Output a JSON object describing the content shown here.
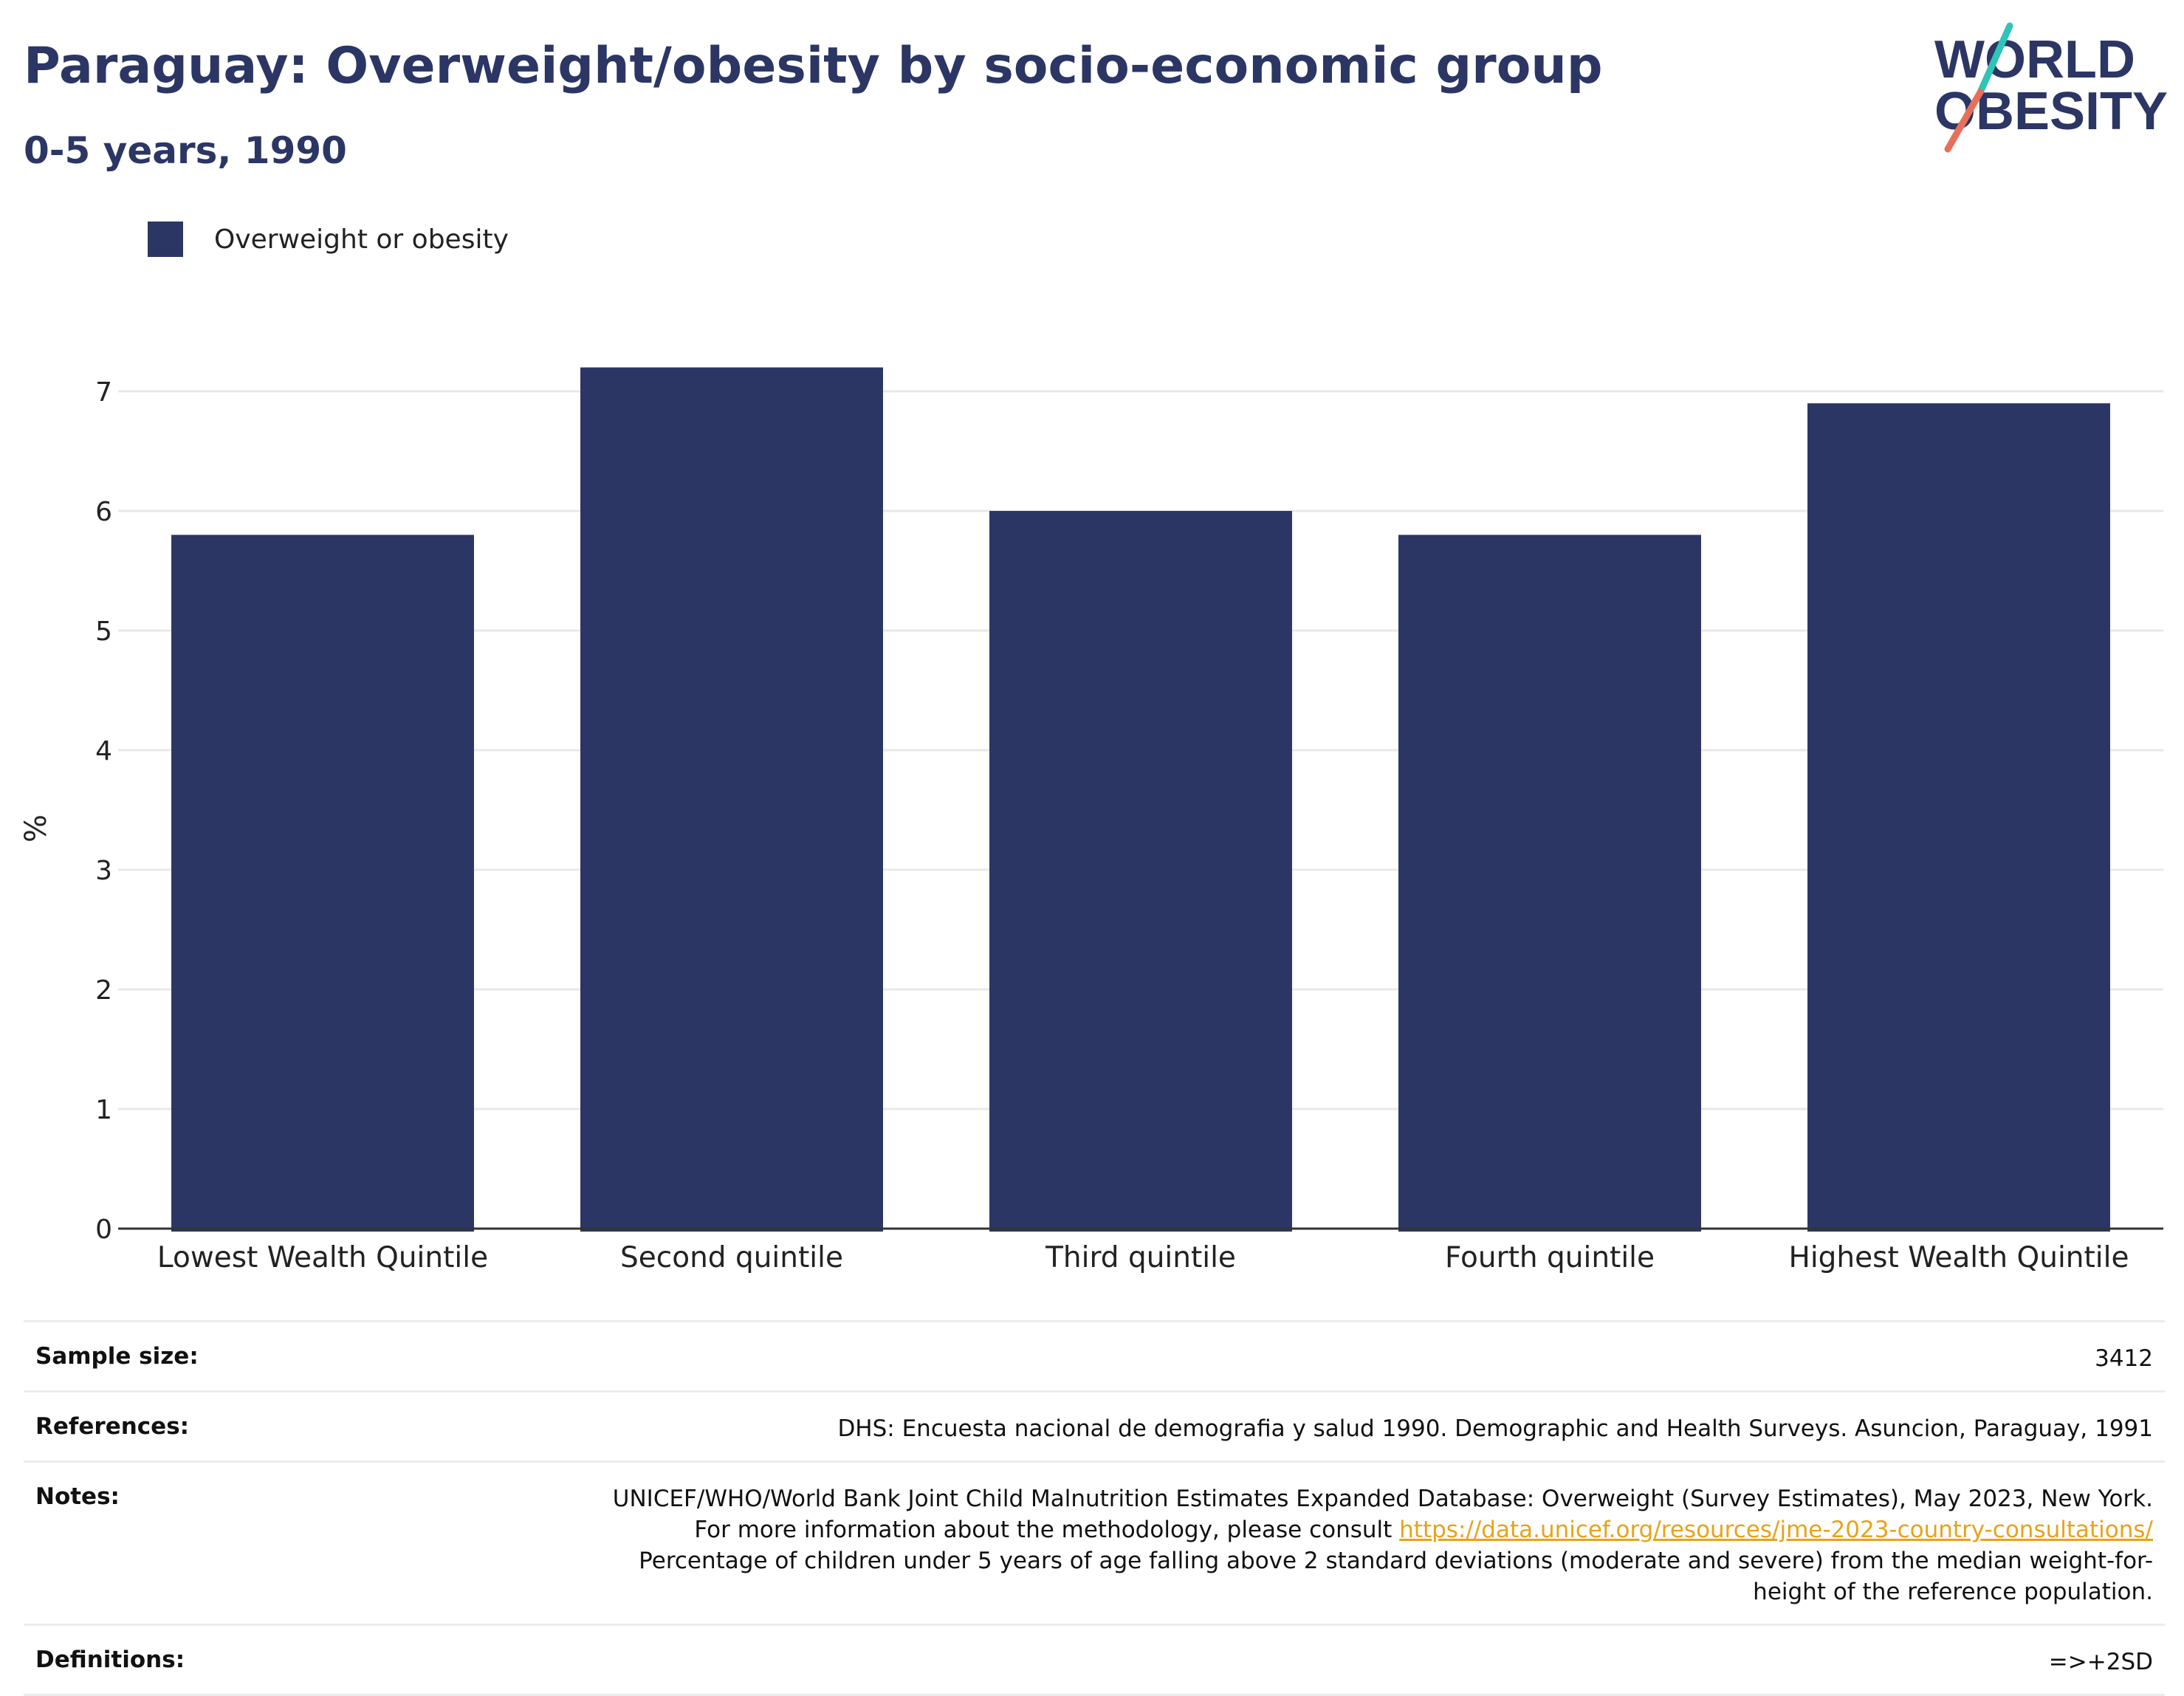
{
  "header": {
    "title": "Paraguay: Overweight/obesity by socio-economic group",
    "subtitle": "0-5 years, 1990"
  },
  "logo": {
    "line1": "WORLD",
    "line2": "OBESITY",
    "colors": {
      "text": "#2b3664",
      "slash_top": "#2ec4b6",
      "slash_bottom": "#e8705a"
    }
  },
  "legend": {
    "label": "Overweight or obesity"
  },
  "colors": {
    "bar": "#2b3664",
    "grid": "#e8e8e8",
    "axis": "#333333",
    "link": "#e8a317"
  },
  "chart_data": {
    "type": "bar",
    "categories": [
      "Lowest Wealth Quintile",
      "Second quintile",
      "Third quintile",
      "Fourth quintile",
      "Highest Wealth Quintile"
    ],
    "series": [
      {
        "name": "Overweight or obesity",
        "values": [
          5.8,
          7.2,
          6.0,
          5.8,
          6.9
        ]
      }
    ],
    "ylabel": "%",
    "ylim": [
      0,
      7.5
    ],
    "yticks": [
      0,
      1,
      2,
      3,
      4,
      5,
      6,
      7
    ],
    "grid": true,
    "legend_position": "top-left"
  },
  "info": {
    "sample_size": {
      "label": "Sample size:",
      "value": "3412"
    },
    "references": {
      "label": "References:",
      "value": "DHS: Encuesta nacional de demografia y salud 1990. Demographic and Health Surveys. Asuncion, Paraguay, 1991"
    },
    "notes": {
      "label": "Notes:",
      "text_before": "UNICEF/WHO/World Bank Joint Child Malnutrition Estimates Expanded Database: Overweight (Survey Estimates), May 2023, New York. For more information about the methodology, please consult ",
      "link": "https://data.unicef.org/resources/jme-2023-country-consultations/",
      "text_after": " Percentage of children under 5 years of age falling above 2 standard deviations (moderate and severe) from the median weight-for-height of the reference population."
    },
    "definitions": {
      "label": "Definitions:",
      "value": "=>+2SD"
    }
  }
}
